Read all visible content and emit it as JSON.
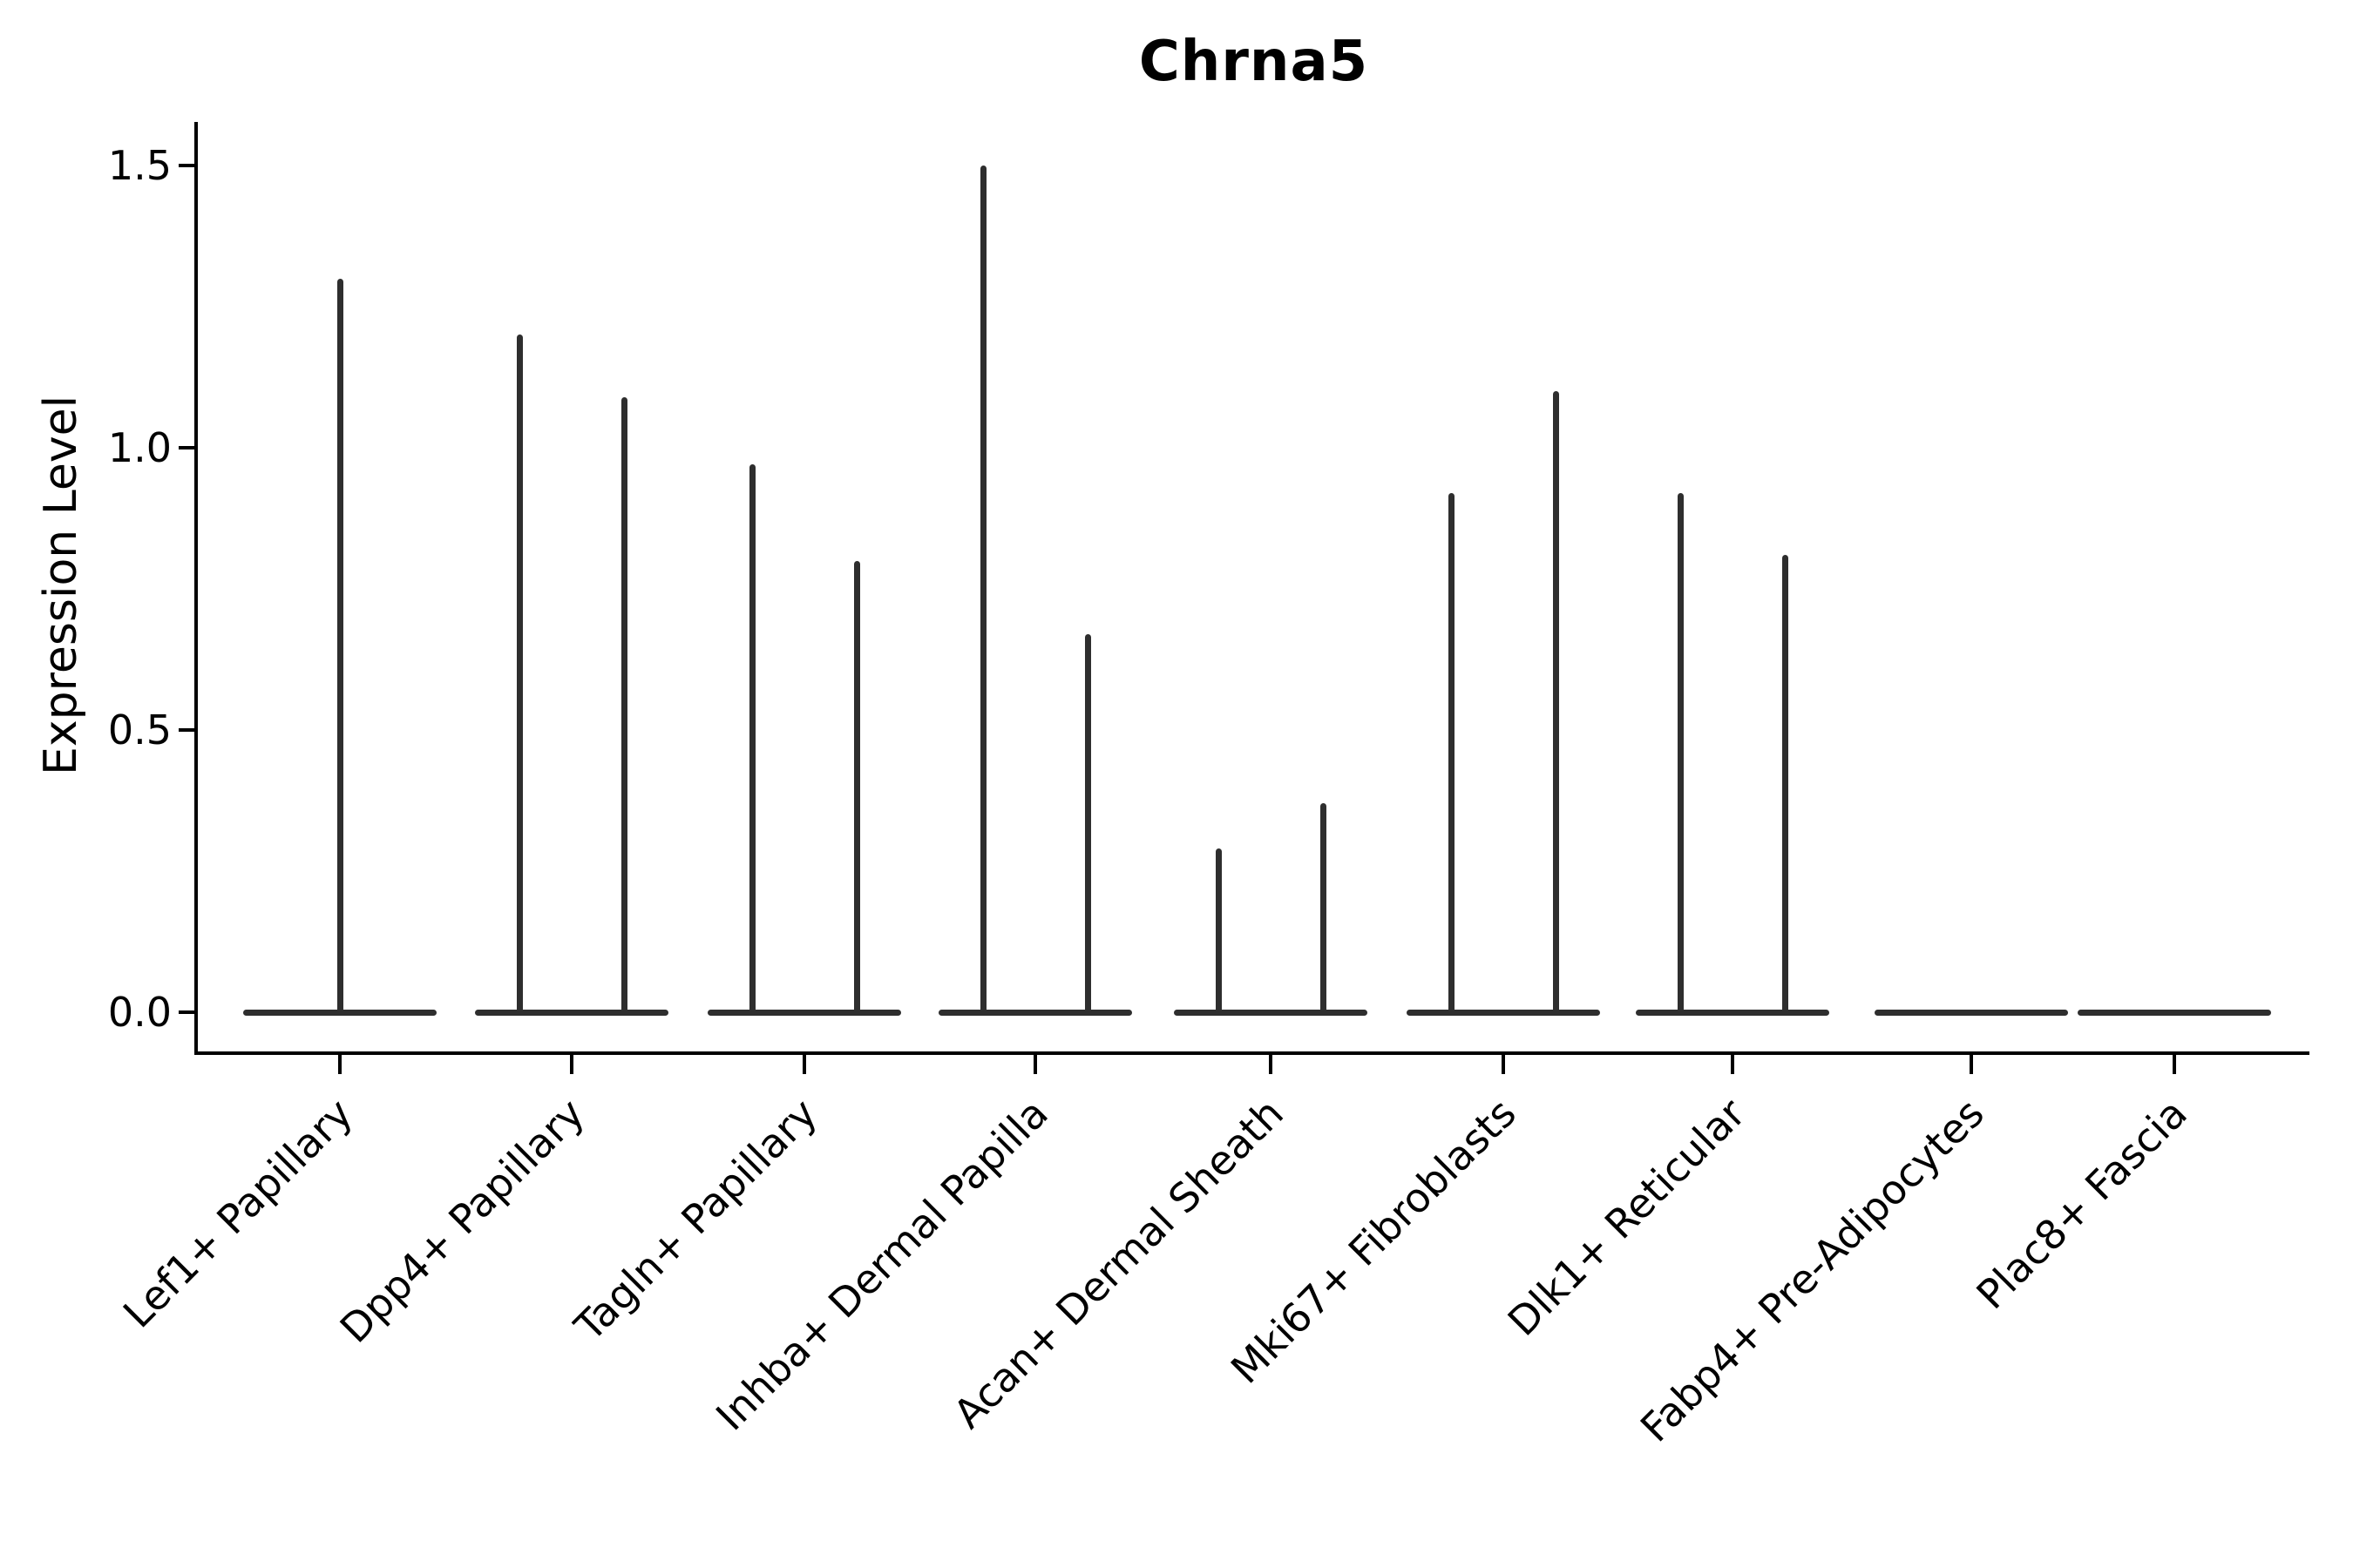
{
  "title": "Chrna5",
  "axes": {
    "ylabel": "Expression Level",
    "y_tick_labels": [
      "0.0",
      "0.5",
      "1.0",
      "1.5"
    ]
  },
  "colors": {
    "background": "#ffffff",
    "axis": "#000000",
    "text": "#000000",
    "violin": "#2e2e2e"
  },
  "chart_data": {
    "type": "violin",
    "title": "Chrna5",
    "xlabel": "",
    "ylabel": "Expression Level",
    "ylim": [
      -0.07,
      1.57
    ],
    "y_ticks": [
      0.0,
      0.5,
      1.0,
      1.5
    ],
    "grid": false,
    "legend": "none",
    "categories": [
      "Lef1+ Papillary",
      "Dpp4+ Papillary",
      "Tagln+ Papillary",
      "Inhba+ Dermal Papilla",
      "Acan+ Dermal Sheath",
      "Mki67+ Fibroblasts",
      "Dlk1+ Reticular",
      "Fabp4+ Pre-Adipocytes",
      "Plac8+ Fascia"
    ],
    "series": [
      {
        "category": "Lef1+ Papillary",
        "violin_maxima": [
          1.3
        ]
      },
      {
        "category": "Dpp4+ Papillary",
        "violin_maxima": [
          1.2,
          1.09
        ]
      },
      {
        "category": "Tagln+ Papillary",
        "violin_maxima": [
          0.97,
          0.8
        ]
      },
      {
        "category": "Inhba+ Dermal Papilla",
        "violin_maxima": [
          1.5,
          0.67
        ]
      },
      {
        "category": "Acan+ Dermal Sheath",
        "violin_maxima": [
          0.29,
          0.37
        ]
      },
      {
        "category": "Mki67+ Fibroblasts",
        "violin_maxima": [
          0.92,
          1.1
        ]
      },
      {
        "category": "Dlk1+ Reticular",
        "violin_maxima": [
          0.92,
          0.81
        ]
      },
      {
        "category": "Fabp4+ Pre-Adipocytes",
        "violin_maxima": []
      },
      {
        "category": "Plac8+ Fascia",
        "violin_maxima": []
      }
    ],
    "baseline_value": 0.0,
    "shape_note": "density concentrated at 0: wide flat base at y=0 per category, thin spike rising to each violin maximum"
  }
}
